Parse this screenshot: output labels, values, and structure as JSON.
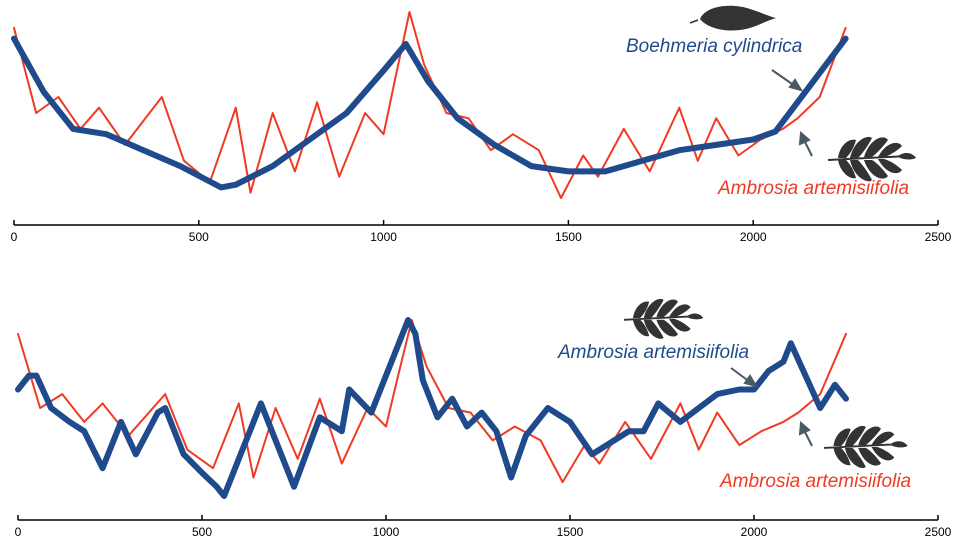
{
  "colors": {
    "blue": "#1f4a8c",
    "red": "#f03a24",
    "arrow": "#4a5a62",
    "axis": "#000000",
    "leaf": "#333333"
  },
  "chart_data": [
    {
      "type": "line",
      "title": "",
      "xlabel": "",
      "ylabel": "",
      "xlim": [
        0,
        2500
      ],
      "xticks": [
        "0",
        "500",
        "1000",
        "1500",
        "2000",
        "2500"
      ],
      "grid": false,
      "series": [
        {
          "name": "Boehmeria cylindrica",
          "color": "#1f4a8c",
          "style": "thick",
          "leaf_icon": "oval-leaf-icon",
          "x": [
            0,
            80,
            160,
            250,
            350,
            450,
            560,
            600,
            700,
            800,
            900,
            1000,
            1060,
            1120,
            1200,
            1300,
            1400,
            1500,
            1600,
            1700,
            1800,
            1900,
            2000,
            2060,
            2250
          ],
          "y": [
            5.0,
            4.0,
            3.3,
            3.2,
            2.9,
            2.6,
            2.2,
            2.25,
            2.6,
            3.1,
            3.6,
            4.4,
            4.9,
            4.2,
            3.5,
            3.0,
            2.6,
            2.5,
            2.5,
            2.7,
            2.9,
            3.0,
            3.1,
            3.25,
            5.0
          ]
        },
        {
          "name": "Ambrosia artemisiifolia",
          "color": "#f03a24",
          "style": "thin",
          "leaf_icon": "ragweed-leaf-icon",
          "x": [
            0,
            60,
            120,
            180,
            230,
            300,
            400,
            460,
            530,
            600,
            640,
            700,
            760,
            820,
            880,
            950,
            1000,
            1030,
            1070,
            1110,
            1170,
            1230,
            1290,
            1350,
            1420,
            1480,
            1540,
            1580,
            1650,
            1720,
            1800,
            1850,
            1900,
            1960,
            2020,
            2080,
            2120,
            2180,
            2250
          ],
          "y": [
            5.2,
            3.6,
            3.9,
            3.3,
            3.7,
            3.0,
            3.9,
            2.7,
            2.3,
            3.7,
            2.1,
            3.6,
            2.5,
            3.8,
            2.4,
            3.6,
            3.2,
            4.2,
            5.5,
            4.5,
            3.6,
            3.5,
            2.9,
            3.2,
            2.9,
            2.0,
            2.8,
            2.4,
            3.3,
            2.5,
            3.7,
            2.7,
            3.5,
            2.8,
            3.1,
            3.3,
            3.5,
            3.9,
            5.2
          ]
        }
      ]
    },
    {
      "type": "line",
      "title": "",
      "xlabel": "",
      "ylabel": "",
      "xlim": [
        0,
        2500
      ],
      "xticks": [
        "0",
        "500",
        "1000",
        "1500",
        "2000",
        "2500"
      ],
      "grid": false,
      "series": [
        {
          "name": "Ambrosia artemisiifolia",
          "color": "#1f4a8c",
          "style": "thick",
          "leaf_icon": "ragweed-leaf-icon",
          "x": [
            0,
            30,
            50,
            90,
            140,
            180,
            230,
            280,
            320,
            380,
            400,
            450,
            500,
            540,
            560,
            600,
            660,
            700,
            750,
            820,
            880,
            900,
            960,
            1000,
            1060,
            1080,
            1100,
            1140,
            1180,
            1220,
            1260,
            1300,
            1340,
            1380,
            1440,
            1500,
            1560,
            1600,
            1660,
            1700,
            1740,
            1800,
            1850,
            1900,
            1960,
            2000,
            2040,
            2080,
            2100,
            2140,
            2180,
            2220,
            2250
          ],
          "y": [
            4.0,
            4.3,
            4.3,
            3.6,
            3.3,
            3.1,
            2.3,
            3.3,
            2.6,
            3.5,
            3.6,
            2.6,
            2.2,
            1.9,
            1.7,
            2.5,
            3.7,
            2.9,
            1.9,
            3.4,
            3.1,
            4.0,
            3.5,
            4.3,
            5.5,
            5.2,
            4.2,
            3.4,
            3.8,
            3.2,
            3.5,
            3.1,
            2.1,
            3.0,
            3.6,
            3.3,
            2.6,
            2.8,
            3.1,
            3.1,
            3.7,
            3.3,
            3.6,
            3.9,
            4.0,
            4.0,
            4.4,
            4.6,
            5.0,
            4.3,
            3.6,
            4.1,
            3.8
          ]
        },
        {
          "name": "Ambrosia artemisiifolia",
          "color": "#f03a24",
          "style": "thin",
          "leaf_icon": "ragweed-leaf-icon",
          "x": [
            0,
            60,
            120,
            180,
            230,
            300,
            400,
            460,
            530,
            600,
            640,
            700,
            760,
            820,
            880,
            950,
            1000,
            1030,
            1070,
            1110,
            1170,
            1230,
            1290,
            1350,
            1420,
            1480,
            1540,
            1580,
            1650,
            1720,
            1800,
            1850,
            1900,
            1960,
            2020,
            2080,
            2120,
            2180,
            2250
          ],
          "y": [
            5.2,
            3.6,
            3.9,
            3.3,
            3.7,
            3.0,
            3.9,
            2.7,
            2.3,
            3.7,
            2.1,
            3.6,
            2.5,
            3.8,
            2.4,
            3.6,
            3.2,
            4.2,
            5.5,
            4.5,
            3.6,
            3.5,
            2.9,
            3.2,
            2.9,
            2.0,
            2.8,
            2.4,
            3.3,
            2.5,
            3.7,
            2.7,
            3.5,
            2.8,
            3.1,
            3.3,
            3.5,
            3.9,
            5.2
          ]
        }
      ]
    }
  ]
}
